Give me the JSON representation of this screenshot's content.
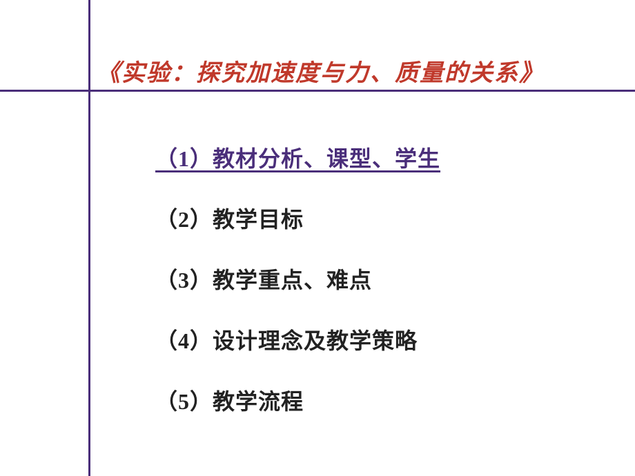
{
  "title": {
    "text": "《实验：探究加速度与力、质量的关系》",
    "color": "#c0392b"
  },
  "lines": {
    "color": "#4a2e7a"
  },
  "items": [
    {
      "text": "（1）教材分析、课型、学生",
      "color": "#4a2e7a",
      "underlined": true
    },
    {
      "text": "（2）教学目标",
      "color": "#222222",
      "underlined": false
    },
    {
      "text": "（3）教学重点、难点",
      "color": "#222222",
      "underlined": false
    },
    {
      "text": "（4）设计理念及教学策略",
      "color": "#222222",
      "underlined": false
    },
    {
      "text": "（5）教学流程",
      "color": "#222222",
      "underlined": false
    }
  ]
}
